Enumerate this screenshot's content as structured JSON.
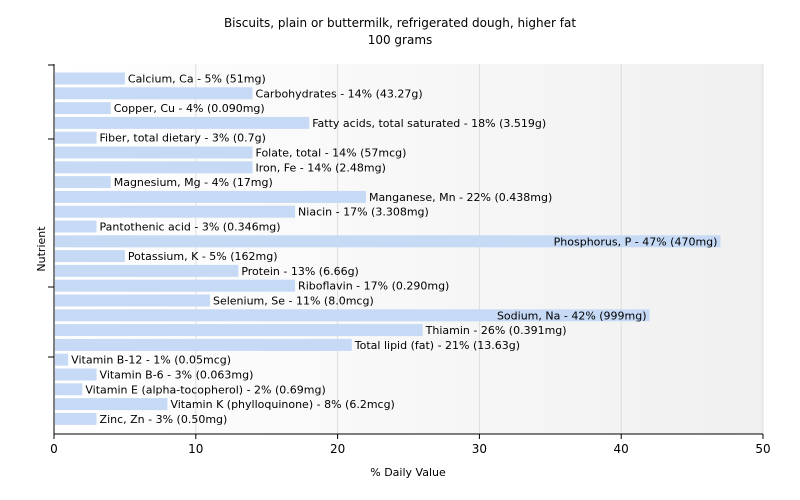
{
  "chart_data": {
    "type": "bar",
    "orientation": "horizontal",
    "title": "Biscuits, plain or buttermilk, refrigerated dough, higher fat",
    "subtitle": "100 grams",
    "xlabel": "% Daily Value",
    "ylabel": "Nutrient",
    "xlim": [
      0,
      50
    ],
    "xticks": [
      "0",
      "10",
      "20",
      "30",
      "40",
      "50"
    ],
    "grid": true,
    "categories": [
      "Calcium, Ca",
      "Carbohydrates",
      "Copper, Cu",
      "Fatty acids, total saturated",
      "Fiber, total dietary",
      "Folate, total",
      "Iron, Fe",
      "Magnesium, Mg",
      "Manganese, Mn",
      "Niacin",
      "Pantothenic acid",
      "Phosphorus, P",
      "Potassium, K",
      "Protein",
      "Riboflavin",
      "Selenium, Se",
      "Sodium, Na",
      "Thiamin",
      "Total lipid (fat)",
      "Vitamin B-12",
      "Vitamin B-6",
      "Vitamin E (alpha-tocopherol)",
      "Vitamin K (phylloquinone)",
      "Zinc, Zn"
    ],
    "values": [
      5,
      14,
      4,
      18,
      3,
      14,
      14,
      4,
      22,
      17,
      3,
      47,
      5,
      13,
      17,
      11,
      42,
      26,
      21,
      1,
      3,
      2,
      8,
      3
    ],
    "labels": [
      "Calcium, Ca - 5% (51mg)",
      "Carbohydrates - 14% (43.27g)",
      "Copper, Cu - 4% (0.090mg)",
      "Fatty acids, total saturated - 18% (3.519g)",
      "Fiber, total dietary - 3% (0.7g)",
      "Folate, total - 14% (57mcg)",
      "Iron, Fe - 14% (2.48mg)",
      "Magnesium, Mg - 4% (17mg)",
      "Manganese, Mn - 22% (0.438mg)",
      "Niacin - 17% (3.308mg)",
      "Pantothenic acid - 3% (0.346mg)",
      "Phosphorus, P - 47% (470mg)",
      "Potassium, K - 5% (162mg)",
      "Protein - 13% (6.66g)",
      "Riboflavin - 17% (0.290mg)",
      "Selenium, Se - 11% (8.0mcg)",
      "Sodium, Na - 42% (999mg)",
      "Thiamin - 26% (0.391mg)",
      "Total lipid (fat) - 21% (13.63g)",
      "Vitamin B-12 - 1% (0.05mcg)",
      "Vitamin B-6 - 3% (0.063mg)",
      "Vitamin E (alpha-tocopherol) - 2% (0.69mg)",
      "Vitamin K (phylloquinone) - 8% (6.2mcg)",
      "Zinc, Zn - 3% (0.50mg)"
    ],
    "colors": {
      "bar": "#c6daf6",
      "grid": "#dddddd",
      "axis": "#000000"
    }
  }
}
